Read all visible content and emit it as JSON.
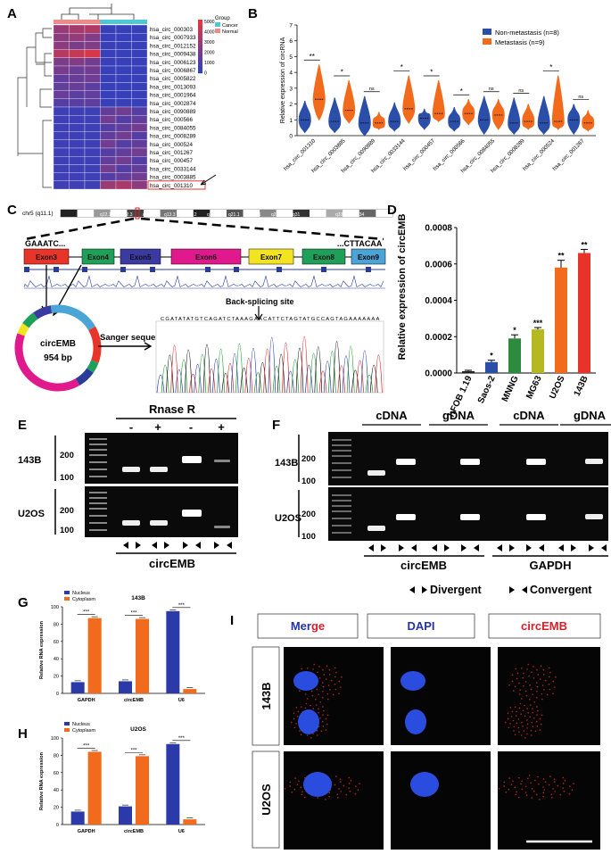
{
  "panels": {
    "A": "A",
    "B": "B",
    "C": "C",
    "D": "D",
    "E": "E",
    "F": "F",
    "G": "G",
    "H": "H",
    "I": "I"
  },
  "heatmap": {
    "legend_title": "Group",
    "groups": [
      "Cancer",
      "Normal"
    ],
    "scale_ticks": [
      "5000",
      "4000",
      "3000",
      "2000",
      "1000",
      "0"
    ],
    "rows": [
      "hsa_circ_000303",
      "hsa_circ_0007933",
      "hsa_circ_0012152",
      "hsa_circ_0009438",
      "hsa_circ_0006123",
      "hsa_circ_0006867",
      "hsa_circ_0005822",
      "hsa_circ_0013093",
      "hsa_circ_0001964",
      "hsa_circ_0002874",
      "hsa_circ_0090889",
      "hsa_circ_000566",
      "hsa_circ_0084055",
      "hsa_circ_0008289",
      "hsa_circ_000524",
      "hsa_circ_001267",
      "hsa_circ_000457",
      "hsa_circ_0033144",
      "hsa_circ_0003885",
      "hsa_circ_001310"
    ],
    "highlight": "hsa_circ_001310",
    "colors": {
      "cancer": "#4fc8d6",
      "normal": "#f08a8a",
      "high": "#e8373c",
      "low": "#2f40c0"
    }
  },
  "chart_data": [
    {
      "type": "violin",
      "panel": "B",
      "ylabel": "Relative expression of circRNA",
      "ylim": [
        0,
        7
      ],
      "yticks": [
        0,
        1,
        2,
        3,
        4,
        5,
        6,
        7
      ],
      "legend": [
        "Non-metastasis (n=8)",
        "Metastasis (n=9)"
      ],
      "colors": [
        "#2b4fa8",
        "#f26a1b"
      ],
      "categories": [
        "hsa_circ_001310",
        "hsa_circ_0003885",
        "hsa_circ_0090889",
        "hsa_circ_0033144",
        "hsa_circ_000457",
        "hsa_circ_000566",
        "hsa_circ_0084055",
        "hsa_circ_0008289",
        "hsa_circ_000524",
        "hsa_circ_001267"
      ],
      "significance": [
        "**",
        "*",
        "ns",
        "*",
        "*",
        "*",
        "ns",
        "ns",
        "*",
        "ns"
      ],
      "series": [
        {
          "name": "Non-metastasis (n=8)",
          "min": [
            0.2,
            0.2,
            0,
            0.3,
            0.4,
            0.3,
            0.1,
            0.1,
            0.1,
            0.1
          ],
          "max": [
            2.2,
            2.4,
            2.5,
            2.1,
            1.7,
            1.8,
            2.5,
            2.4,
            2.5,
            2.0
          ],
          "median": [
            1.0,
            0.9,
            0.8,
            0.9,
            1.1,
            0.9,
            1.0,
            0.8,
            0.8,
            1.0
          ]
        },
        {
          "name": "Metastasis (n=9)",
          "min": [
            1.0,
            0.8,
            0.4,
            0.8,
            0.9,
            0.7,
            0.4,
            0.4,
            0.4,
            0.3
          ],
          "max": [
            4.5,
            3.5,
            1.5,
            3.8,
            3.5,
            2.3,
            2.3,
            2.0,
            3.8,
            1.6
          ],
          "median": [
            2.3,
            1.6,
            0.8,
            1.7,
            1.4,
            1.4,
            1.3,
            0.9,
            0.9,
            0.8
          ]
        }
      ]
    },
    {
      "type": "bar",
      "panel": "D",
      "ylabel": "Relative expression of circEMB",
      "ylim": [
        0,
        0.0008
      ],
      "yticks": [
        "0.0000",
        "0.0002",
        "0.0004",
        "0.0006",
        "0.0008"
      ],
      "categories": [
        "hFOB 1.19",
        "Saos-2",
        "MNNG",
        "MG63",
        "U2OS",
        "143B"
      ],
      "values": [
        1e-05,
        6e-05,
        0.00019,
        0.00024,
        0.00058,
        0.00066
      ],
      "errors": [
        5e-06,
        1e-05,
        2e-05,
        1e-05,
        4e-05,
        2e-05
      ],
      "colors": [
        "#222222",
        "#2b4fa8",
        "#2e8b3e",
        "#b5b821",
        "#f26a1b",
        "#e8332a"
      ],
      "significance": [
        "",
        "*",
        "*",
        "***",
        "**",
        "**"
      ]
    },
    {
      "type": "bar",
      "panel": "G",
      "title": "143B",
      "ylabel": "Relative RNA expression",
      "ylim": [
        0,
        100
      ],
      "yticks": [
        0,
        20,
        40,
        60,
        80,
        100
      ],
      "categories": [
        "GAPDH",
        "circEMB",
        "U6"
      ],
      "legend": [
        "Nucleus",
        "Cytoplasm"
      ],
      "colors": [
        "#2b3aa8",
        "#f26a1b"
      ],
      "series": [
        {
          "name": "Nucleus",
          "values": [
            13,
            14,
            95
          ]
        },
        {
          "name": "Cytoplasm",
          "values": [
            87,
            86,
            5
          ]
        }
      ],
      "significance": [
        "***",
        "***",
        "***"
      ]
    },
    {
      "type": "bar",
      "panel": "H",
      "title": "U2OS",
      "ylabel": "Relative RNA expression",
      "ylim": [
        0,
        100
      ],
      "yticks": [
        0,
        20,
        40,
        60,
        80,
        100
      ],
      "categories": [
        "GAPDH",
        "circEMB",
        "U6"
      ],
      "legend": [
        "Nucleus",
        "Cytoplasm"
      ],
      "colors": [
        "#2b3aa8",
        "#f26a1b"
      ],
      "series": [
        {
          "name": "Nucleus",
          "values": [
            15,
            21,
            93
          ]
        },
        {
          "name": "Cytoplasm",
          "values": [
            84,
            79,
            6
          ]
        }
      ],
      "significance": [
        "***",
        "***",
        "***"
      ]
    }
  ],
  "panelC": {
    "chrom": "chr5 (q11.1)",
    "bands": [
      "q11.2",
      "q12.1",
      "q12.3",
      "q13.1",
      "q13.3",
      "q14.2",
      "q15",
      "q21.1",
      "q22.1",
      "q23.1",
      "q31",
      "q32",
      "q33.2",
      "q34"
    ],
    "left_seq": "GAAATC...",
    "right_seq": "...CTTACAA",
    "exons": [
      {
        "label": "Exon3",
        "color": "#e8352a"
      },
      {
        "label": "Exon4",
        "color": "#1fa05a"
      },
      {
        "label": "Exon5",
        "color": "#3a3aa0"
      },
      {
        "label": "Exon6",
        "color": "#e01a8c"
      },
      {
        "label": "Exon7",
        "color": "#f2e420"
      },
      {
        "label": "Exon8",
        "color": "#1fa05a"
      },
      {
        "label": "Exon9",
        "color": "#4aa4d6"
      }
    ],
    "circ_name": "circEMB",
    "circ_size": "954 bp",
    "sanger_label": "Sanger sequencing",
    "bss_label": "Back-splicing site",
    "sequence": "CGATATATGTCAGATCTAAAGAACATTCTAGTATGCCAGTAGAAAAAAA"
  },
  "panelE": {
    "title": "Rnase R",
    "signs": [
      "-",
      "+",
      "-",
      "+"
    ],
    "cells": [
      "143B",
      "U2OS"
    ],
    "markers": [
      "200",
      "100"
    ],
    "bottom_label": "circEMB"
  },
  "panelF": {
    "headers": [
      "cDNA",
      "gDNA",
      "cDNA",
      "gDNA"
    ],
    "cells": [
      "143B",
      "U2OS"
    ],
    "markers": [
      "200",
      "100"
    ],
    "groups": [
      "circEMB",
      "GAPDH"
    ],
    "legend_div": "Divergent",
    "legend_conv": "Convergent"
  },
  "panelI": {
    "cols": [
      {
        "parts": [
          {
            "t": "Merge",
            "c": "#2233aa"
          },
          {
            "t": "",
            "c": ""
          }
        ]
      },
      {
        "parts": [
          {
            "t": "DAPI",
            "c": "#2233aa"
          }
        ]
      },
      {
        "parts": [
          {
            "t": "circEMB",
            "c": "#d8202a"
          }
        ]
      }
    ],
    "merge_a": "Mer",
    "merge_b": "ge",
    "dapi": "DAPI",
    "circ": "circEMB",
    "rows": [
      "143B",
      "U2OS"
    ]
  }
}
